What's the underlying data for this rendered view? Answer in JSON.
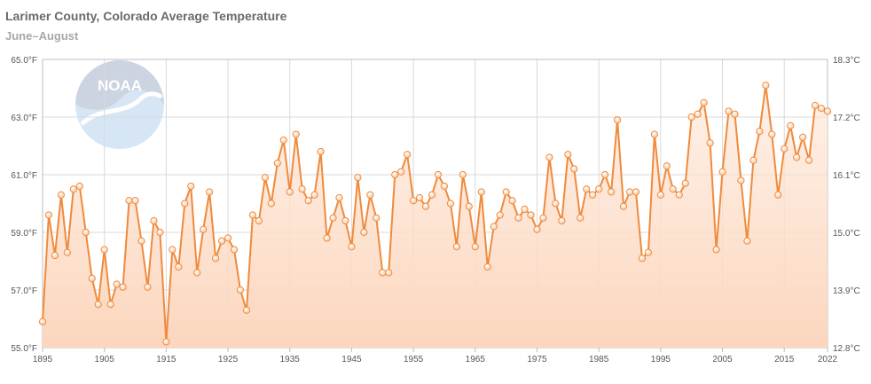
{
  "colors": {
    "line": "#f08a3c",
    "area_top": "#fde6d6",
    "area_bottom": "#fcd6bd",
    "marker_fill": "#fdf0e4",
    "grid": "#d9d9d9",
    "noaa_logo": "#4a8fd0"
  },
  "logo": {
    "text": "NOAA"
  },
  "chart_data": {
    "type": "line",
    "title": "Larimer County, Colorado Average Temperature",
    "subtitle": "June–August",
    "xlabel": "",
    "ylabel": "",
    "x_ticks": [
      "1895",
      "1905",
      "1915",
      "1925",
      "1935",
      "1945",
      "1955",
      "1965",
      "1975",
      "1985",
      "1995",
      "2005",
      "2015",
      "2022"
    ],
    "y_ticks_left": [
      "55.0°F",
      "57.0°F",
      "59.0°F",
      "61.0°F",
      "63.0°F",
      "65.0°F"
    ],
    "y_ticks_right": [
      "12.8°C",
      "13.9°C",
      "15.0°C",
      "16.1°C",
      "17.2°C",
      "18.3°C"
    ],
    "xlim": [
      1895,
      2022
    ],
    "ylim": [
      55,
      65
    ],
    "grid": true,
    "legend": "none",
    "series": [
      {
        "x_start": 1895,
        "values": [
          55.9,
          59.6,
          58.2,
          60.3,
          58.3,
          60.5,
          60.6,
          59.0,
          57.4,
          56.5,
          58.4,
          56.5,
          57.2,
          57.1,
          60.1,
          60.1,
          58.7,
          57.1,
          59.4,
          59.0,
          55.2,
          58.4,
          57.8,
          60.0,
          60.6,
          57.6,
          59.1,
          60.4,
          58.1,
          58.7,
          58.8,
          58.4,
          57.0,
          56.3,
          59.6,
          59.4,
          60.9,
          60.0,
          61.4,
          62.2,
          60.4,
          62.4,
          60.5,
          60.1,
          60.3,
          61.8,
          58.8,
          59.5,
          60.2,
          59.4,
          58.5,
          60.9,
          59.0,
          60.3,
          59.5,
          57.6,
          57.6,
          61.0,
          61.1,
          61.7,
          60.1,
          60.2,
          59.9,
          60.3,
          61.0,
          60.6,
          60.0,
          58.5,
          61.0,
          59.9,
          58.5,
          60.4,
          57.8,
          59.2,
          59.6,
          60.4,
          60.1,
          59.5,
          59.8,
          59.6,
          59.1,
          59.5,
          61.6,
          60.0,
          59.4,
          61.7,
          61.2,
          59.5,
          60.5,
          60.3,
          60.5,
          61.0,
          60.4,
          62.9,
          59.9,
          60.4,
          60.4,
          58.1,
          58.3,
          62.4,
          60.3,
          61.3,
          60.5,
          60.3,
          60.7,
          63.0,
          63.1,
          63.5,
          62.1,
          58.4,
          61.1,
          63.2,
          63.1,
          60.8,
          58.7,
          61.5,
          62.5,
          64.1,
          62.4,
          60.3,
          61.9,
          62.7,
          61.6,
          62.3,
          61.5,
          63.4,
          63.3,
          63.2
        ]
      }
    ]
  }
}
